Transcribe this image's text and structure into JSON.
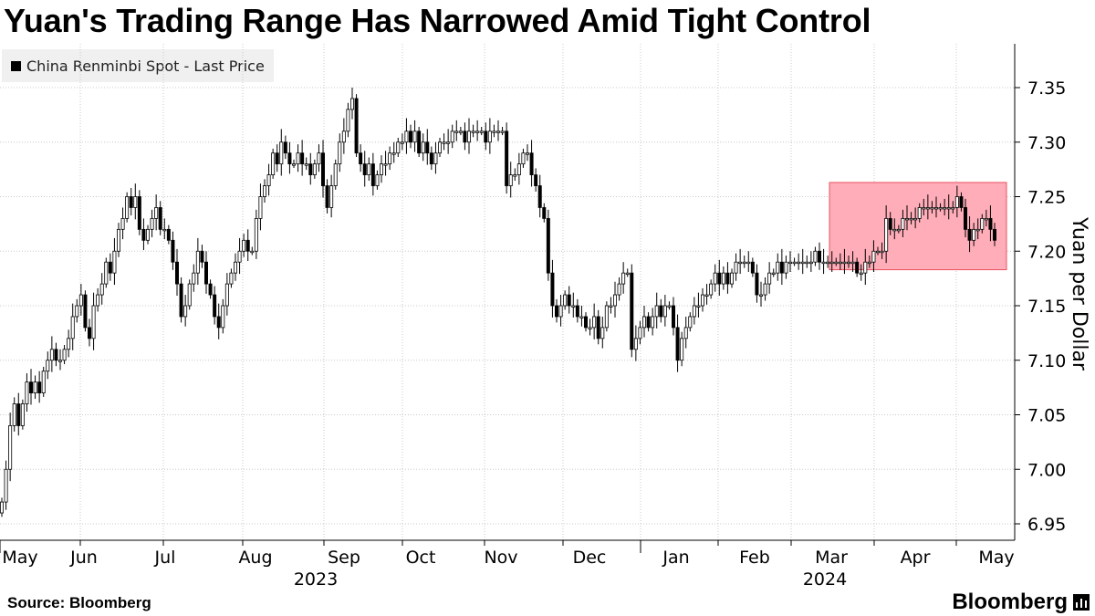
{
  "title": "Yuan's Trading Range Has Narrowed Amid Tight Control",
  "source": "Source: Bloomberg",
  "brand": "Bloomberg",
  "chart_data": {
    "type": "candlestick",
    "title": "Yuan's Trading Range Has Narrowed Amid Tight Control",
    "legend": [
      "China Renminbi Spot - Last Price"
    ],
    "legend_position": "top-left",
    "ylabel": "Yuan per Dollar",
    "xlabel": "",
    "ylim": [
      6.93,
      7.39
    ],
    "yticks": [
      6.95,
      7.0,
      7.05,
      7.1,
      7.15,
      7.2,
      7.25,
      7.3,
      7.35
    ],
    "ytick_labels": [
      "6.95",
      "7.00",
      "7.05",
      "7.10",
      "7.15",
      "7.20",
      "7.25",
      "7.30",
      "7.35"
    ],
    "y_axis_position": "right",
    "grid": true,
    "x_months": [
      "May",
      "Jun",
      "Jul",
      "Aug",
      "Sep",
      "Oct",
      "Nov",
      "Dec",
      "Jan",
      "Feb",
      "Mar",
      "Apr",
      "May"
    ],
    "x_years": [
      "2023",
      "2024"
    ],
    "year_start_months": [
      "2023-05",
      "2024-01"
    ],
    "highlight": {
      "description": "narrowed trading range",
      "color": "#ffaab5",
      "border": "#e8505f",
      "from_month": "2024-03",
      "to_month": "2024-05",
      "y_range": [
        7.183,
        7.263
      ]
    },
    "daily_close": [
      6.97,
      7.0,
      7.04,
      7.06,
      7.04,
      7.06,
      7.08,
      7.07,
      7.08,
      7.07,
      7.09,
      7.1,
      7.11,
      7.1,
      7.1,
      7.11,
      7.12,
      7.14,
      7.15,
      7.16,
      7.13,
      7.12,
      7.15,
      7.16,
      7.17,
      7.19,
      7.18,
      7.2,
      7.22,
      7.23,
      7.25,
      7.24,
      7.25,
      7.22,
      7.21,
      7.22,
      7.23,
      7.24,
      7.22,
      7.22,
      7.21,
      7.19,
      7.17,
      7.14,
      7.15,
      7.17,
      7.18,
      7.2,
      7.19,
      7.17,
      7.16,
      7.14,
      7.13,
      7.15,
      7.17,
      7.18,
      7.19,
      7.2,
      7.21,
      7.2,
      7.2,
      7.23,
      7.25,
      7.26,
      7.27,
      7.29,
      7.28,
      7.3,
      7.29,
      7.28,
      7.28,
      7.29,
      7.28,
      7.28,
      7.27,
      7.28,
      7.29,
      7.26,
      7.24,
      7.26,
      7.28,
      7.3,
      7.31,
      7.33,
      7.34,
      7.29,
      7.28,
      7.27,
      7.28,
      7.26,
      7.27,
      7.28,
      7.28,
      7.29,
      7.29,
      7.3,
      7.3,
      7.31,
      7.3,
      7.31,
      7.29,
      7.3,
      7.29,
      7.28,
      7.29,
      7.3,
      7.3,
      7.3,
      7.31,
      7.31,
      7.31,
      7.3,
      7.31,
      7.31,
      7.31,
      7.31,
      7.3,
      7.31,
      7.31,
      7.31,
      7.31,
      7.26,
      7.27,
      7.27,
      7.28,
      7.29,
      7.29,
      7.27,
      7.26,
      7.24,
      7.23,
      7.18,
      7.15,
      7.14,
      7.15,
      7.16,
      7.15,
      7.15,
      7.14,
      7.14,
      7.13,
      7.13,
      7.14,
      7.12,
      7.13,
      7.15,
      7.15,
      7.16,
      7.17,
      7.18,
      7.18,
      7.11,
      7.12,
      7.13,
      7.14,
      7.13,
      7.14,
      7.15,
      7.14,
      7.15,
      7.15,
      7.13,
      7.1,
      7.12,
      7.13,
      7.14,
      7.15,
      7.15,
      7.16,
      7.16,
      7.17,
      7.18,
      7.17,
      7.18,
      7.17,
      7.18,
      7.19,
      7.19,
      7.19,
      7.19,
      7.18,
      7.16,
      7.16,
      7.17,
      7.18,
      7.18,
      7.19,
      7.18,
      7.19,
      7.19,
      7.19,
      7.19,
      7.19,
      7.19,
      7.19,
      7.2,
      7.19,
      7.19,
      7.19,
      7.19,
      7.19,
      7.19,
      7.19,
      7.19,
      7.19,
      7.18,
      7.18,
      7.19,
      7.19,
      7.2,
      7.2,
      7.2,
      7.23,
      7.22,
      7.22,
      7.22,
      7.23,
      7.23,
      7.23,
      7.23,
      7.24,
      7.24,
      7.24,
      7.24,
      7.24,
      7.24,
      7.24,
      7.24,
      7.24,
      7.25,
      7.24,
      7.22,
      7.21,
      7.22,
      7.22,
      7.23,
      7.23,
      7.22,
      7.21
    ]
  }
}
